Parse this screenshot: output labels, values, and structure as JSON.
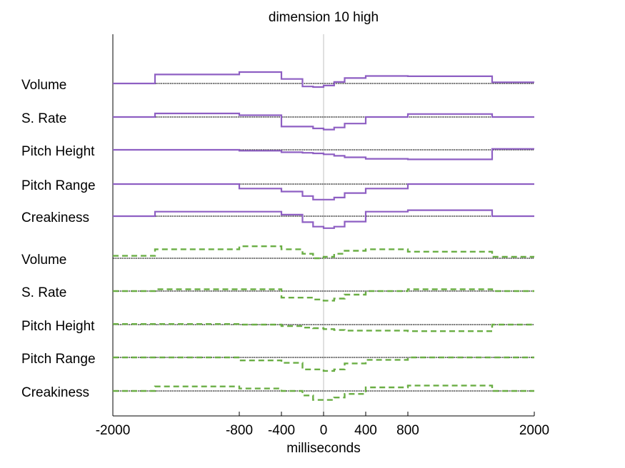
{
  "chart_data": {
    "type": "line",
    "title": "dimension 10 high",
    "xlabel": "milliseconds",
    "ylabel": "",
    "xlim": [
      -2000,
      2000
    ],
    "x_ticks": [
      -2000,
      -800,
      -400,
      0,
      400,
      800,
      2000
    ],
    "x_tick_labels": [
      "-2000",
      "-800",
      "-400",
      "0",
      "400",
      "800",
      "2000"
    ],
    "bin_edges": [
      -2000,
      -1600,
      -800,
      -400,
      -200,
      -100,
      0,
      100,
      200,
      400,
      800,
      1600,
      2000
    ],
    "row_unit": 1,
    "colors": {
      "purple": "#8e5fc3",
      "green": "#6aae44",
      "baseline": "#000000",
      "center": "#c0c0c0"
    },
    "groups": [
      {
        "style": "solid",
        "color": "#8e5fc3",
        "rows": [
          {
            "label": "Volume",
            "values": [
              0,
              0.3,
              0.38,
              0.15,
              -0.1,
              -0.12,
              -0.07,
              0.05,
              0.18,
              0.25,
              0.24,
              0.04
            ]
          },
          {
            "label": "S. Rate",
            "values": [
              0,
              0.12,
              0.06,
              -0.32,
              -0.32,
              -0.38,
              -0.42,
              -0.35,
              -0.22,
              0,
              0.1,
              0
            ]
          },
          {
            "label": "Pitch Height",
            "values": [
              0,
              0,
              -0.03,
              -0.08,
              -0.1,
              -0.12,
              -0.15,
              -0.2,
              -0.25,
              -0.3,
              -0.32,
              0.03
            ]
          },
          {
            "label": "Pitch Range",
            "values": [
              0,
              0,
              -0.15,
              -0.25,
              -0.4,
              -0.52,
              -0.52,
              -0.45,
              -0.3,
              -0.15,
              0,
              0
            ]
          },
          {
            "label": "Creakiness",
            "values": [
              0,
              0.15,
              0.15,
              0.05,
              -0.2,
              -0.35,
              -0.4,
              -0.35,
              -0.18,
              0.15,
              0.2,
              0
            ]
          }
        ]
      },
      {
        "style": "dashed",
        "color": "#6aae44",
        "rows": [
          {
            "label": "Volume",
            "values": [
              0.08,
              0.3,
              0.4,
              0.3,
              0.15,
              0,
              0.05,
              0.15,
              0.25,
              0.3,
              0.22,
              0.05
            ]
          },
          {
            "label": "S. Rate",
            "values": [
              0,
              0.06,
              0.06,
              -0.22,
              -0.22,
              -0.28,
              -0.32,
              -0.25,
              -0.12,
              0,
              0.06,
              0
            ]
          },
          {
            "label": "Pitch Height",
            "values": [
              0.02,
              0.02,
              0,
              -0.05,
              -0.1,
              -0.12,
              -0.15,
              -0.18,
              -0.2,
              -0.2,
              -0.22,
              0
            ]
          },
          {
            "label": "Pitch Range",
            "values": [
              0,
              0,
              -0.1,
              -0.18,
              -0.4,
              -0.4,
              -0.45,
              -0.4,
              -0.2,
              -0.08,
              0,
              0
            ]
          },
          {
            "label": "Creakiness",
            "values": [
              0,
              0.15,
              0.08,
              0,
              -0.15,
              -0.3,
              -0.3,
              -0.22,
              -0.1,
              0.12,
              0.18,
              0
            ]
          }
        ]
      }
    ]
  }
}
